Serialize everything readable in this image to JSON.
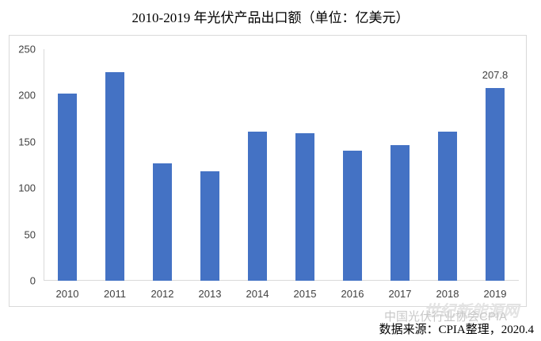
{
  "chart_data": {
    "type": "bar",
    "title": "2010-2019 年光伏产品出口额（单位：亿美元）",
    "xlabel": "",
    "ylabel": "",
    "ylim": [
      0,
      250
    ],
    "yticks": [
      "0",
      "50",
      "100",
      "150",
      "200",
      "250"
    ],
    "grid": false,
    "legend": null,
    "categories": [
      "2010",
      "2011",
      "2012",
      "2013",
      "2014",
      "2015",
      "2016",
      "2017",
      "2018",
      "2019"
    ],
    "values": [
      202,
      225,
      127,
      118,
      161,
      159,
      140,
      146,
      161,
      207.8
    ],
    "bar_color": "#4472c4",
    "annotations": [
      {
        "category": "2019",
        "text": "207.8"
      }
    ]
  },
  "footer": {
    "watermark_text": "中国光伏行业协会CPIA",
    "watermark_logo_text": "世纪新能源网",
    "source": "数据来源：CPIA整理，2020.4"
  }
}
